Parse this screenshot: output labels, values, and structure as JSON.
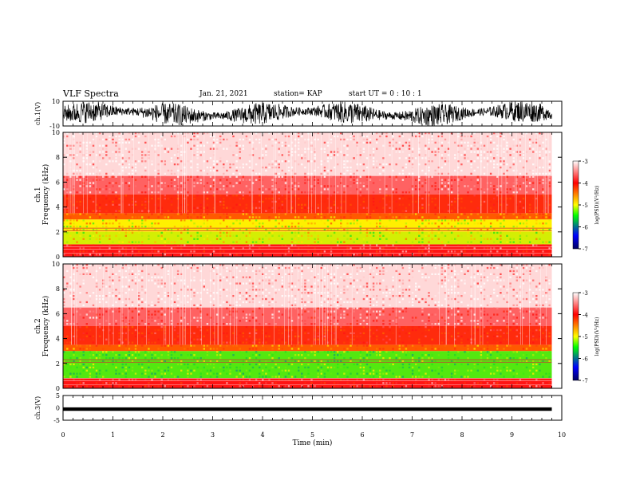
{
  "header": {
    "title": "VLF Spectra",
    "date": "Jan. 21, 2021",
    "station": "station= KAP",
    "start": "start  UT =  0 : 10 : 1"
  },
  "chart_data": [
    {
      "type": "line",
      "panel": "ch1-waveform",
      "ylabel": "ch.1(V)",
      "ylim": [
        -10,
        10
      ],
      "yticks": [
        "10",
        "-10"
      ],
      "xlim": [
        0,
        10
      ],
      "signal": "dense noisy waveform spanning roughly -10 to 10 V from 0 to ~9.8 min",
      "color": "#000000"
    },
    {
      "type": "heatmap",
      "panel": "ch1-spectrogram",
      "ylabel": "ch.1 Frequency (kHz)",
      "ylim": [
        0,
        10
      ],
      "yticks": [
        "0",
        "2",
        "4",
        "6",
        "8",
        "10"
      ],
      "xlim": [
        0,
        10
      ],
      "data_end_min": 9.8,
      "bands": [
        {
          "fmin": 0,
          "fmax": 1.0,
          "level": -3.6
        },
        {
          "fmin": 1.0,
          "fmax": 2.0,
          "level": -4.7
        },
        {
          "fmin": 2.0,
          "fmax": 3.0,
          "level": -4.6
        },
        {
          "fmin": 3.0,
          "fmax": 3.5,
          "level": -4.2
        },
        {
          "fmin": 3.5,
          "fmax": 5.0,
          "level": -3.8
        },
        {
          "fmin": 5.0,
          "fmax": 6.5,
          "level": -3.4
        },
        {
          "fmin": 6.5,
          "fmax": 10.0,
          "level": -3.1
        }
      ],
      "colorbar": {
        "label": "log(PSD)(V²/Hz)",
        "ticks": [
          "-3",
          "-4",
          "-5",
          "-6",
          "-7"
        ],
        "range": [
          -7,
          -3
        ]
      }
    },
    {
      "type": "heatmap",
      "panel": "ch2-spectrogram",
      "ylabel": "ch.2 Frequency (kHz)",
      "ylim": [
        0,
        10
      ],
      "yticks": [
        "0",
        "2",
        "4",
        "6",
        "8",
        "10"
      ],
      "xlim": [
        0,
        10
      ],
      "data_end_min": 9.8,
      "bands": [
        {
          "fmin": 0,
          "fmax": 0.8,
          "level": -3.6
        },
        {
          "fmin": 0.8,
          "fmax": 3.0,
          "level": -5.0
        },
        {
          "fmin": 3.0,
          "fmax": 3.5,
          "level": -4.2
        },
        {
          "fmin": 3.5,
          "fmax": 5.0,
          "level": -3.8
        },
        {
          "fmin": 5.0,
          "fmax": 6.5,
          "level": -3.4
        },
        {
          "fmin": 6.5,
          "fmax": 10.0,
          "level": -3.1
        }
      ],
      "colorbar": {
        "label": "log(PSD)(V²/Hz)",
        "ticks": [
          "-3",
          "-4",
          "-5",
          "-6",
          "-7"
        ],
        "range": [
          -7,
          -3
        ]
      }
    },
    {
      "type": "line",
      "panel": "ch3-waveform",
      "ylabel": "ch.3(V)",
      "ylim": [
        -5,
        5
      ],
      "yticks": [
        "5",
        "0",
        "-5"
      ],
      "xlim": [
        0,
        10
      ],
      "signal": "thin constant-amplitude band near -0.5 V from 0 to ~9.8 min",
      "color": "#000000"
    }
  ],
  "xaxis": {
    "label": "Time (min)",
    "ticks": [
      "0",
      "1",
      "2",
      "3",
      "4",
      "5",
      "6",
      "7",
      "8",
      "9",
      "10"
    ]
  },
  "colors": {
    "scale": [
      "#ffffff",
      "#ff0000",
      "#ffff00",
      "#00ff00",
      "#0000ff",
      "#000080"
    ],
    "line": "#000000"
  }
}
